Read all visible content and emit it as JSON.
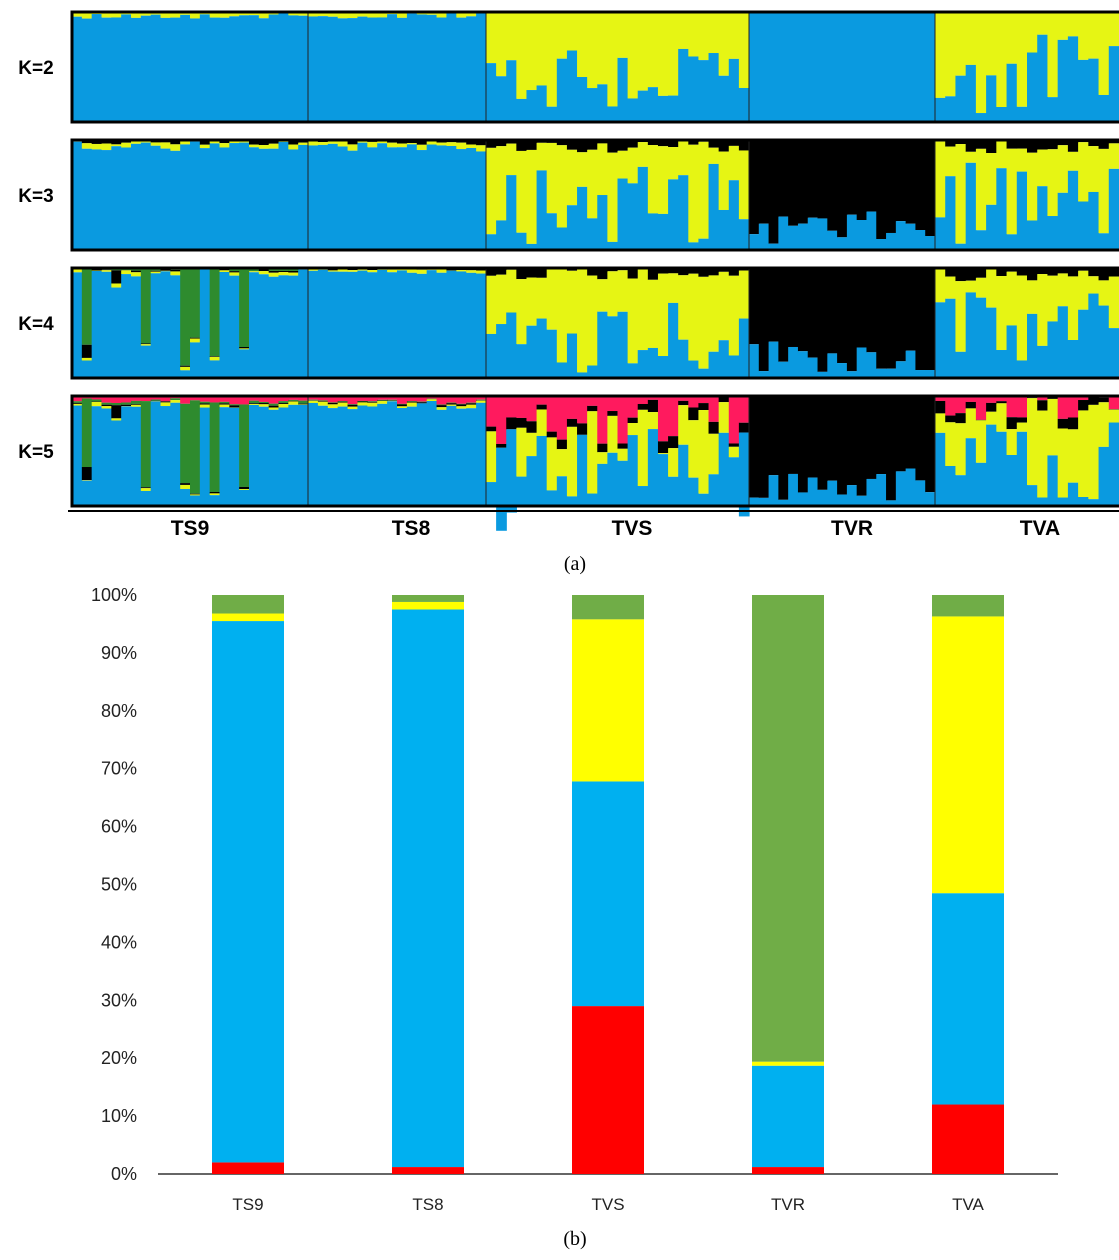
{
  "panel_a": {
    "caption": "(a)",
    "k_labels": [
      "K=2",
      "K=3",
      "K=4",
      "K=5"
    ],
    "populations": [
      "TS9",
      "TS8",
      "TVS",
      "TVR",
      "TVA"
    ]
  },
  "panel_b": {
    "caption": "(b)"
  },
  "chart_data": [
    {
      "type": "bar",
      "subtype": "structure-barplot",
      "panel": "a",
      "rows": [
        "K=2",
        "K=3",
        "K=4",
        "K=5"
      ],
      "groups": [
        "TS9",
        "TS8",
        "TVS",
        "TVR",
        "TVA"
      ],
      "colors": {
        "blue": "#0a9ae0",
        "yellow": "#e6f514",
        "black": "#000000",
        "green": "#2e8b2e",
        "red": "#ff1a5e"
      }
    },
    {
      "type": "bar",
      "subtype": "stacked-100",
      "panel": "b",
      "categories": [
        "TS9",
        "TS8",
        "TVS",
        "TVR",
        "TVA"
      ],
      "ylim": [
        0,
        100
      ],
      "yticks": [
        "0%",
        "10%",
        "20%",
        "30%",
        "40%",
        "50%",
        "60%",
        "70%",
        "80%",
        "90%",
        "100%"
      ],
      "series": [
        {
          "color": "#ff0000",
          "values": [
            2.0,
            1.2,
            29.0,
            1.2,
            12.0
          ]
        },
        {
          "color": "#00b0f0",
          "values": [
            93.5,
            96.3,
            38.8,
            17.5,
            36.5
          ]
        },
        {
          "color": "#ffff00",
          "values": [
            1.3,
            1.3,
            28.0,
            0.7,
            47.8
          ]
        },
        {
          "color": "#70ad47",
          "values": [
            3.2,
            1.2,
            4.2,
            80.6,
            3.7
          ]
        }
      ]
    }
  ]
}
